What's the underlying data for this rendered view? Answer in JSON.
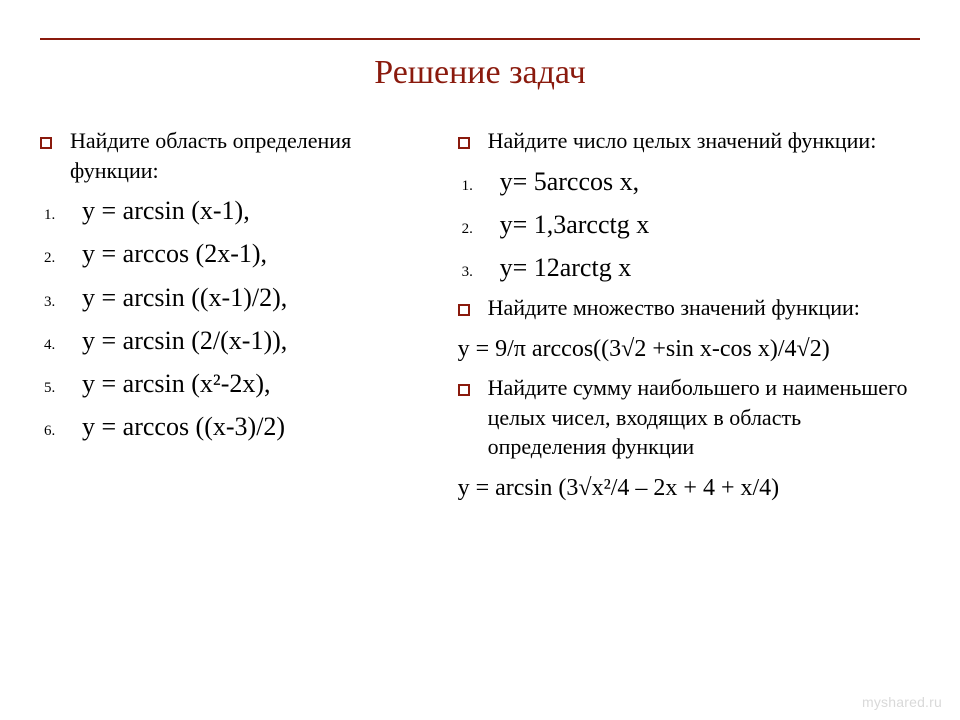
{
  "colors": {
    "accent": "#8a1a0d",
    "text": "#000000",
    "background": "#ffffff",
    "watermark": "#d9d9d9"
  },
  "title": "Решение задач",
  "left": {
    "prompt1": "Найдите область определения функции:",
    "items": [
      {
        "n": "1.",
        "t": "у = arcsin (x-1),"
      },
      {
        "n": "2.",
        "t": "у = arccos (2x-1),"
      },
      {
        "n": "3.",
        "t": "у = arcsin ((x-1)/2),"
      },
      {
        "n": "4.",
        "t": "у = arcsin (2/(x-1)),"
      },
      {
        "n": "5.",
        "t": "у = arcsin (x²-2x),"
      },
      {
        "n": "6.",
        "t": "у = arccos ((x-3)/2)"
      }
    ]
  },
  "right": {
    "prompt1": "Найдите число целых значений функции:",
    "items1": [
      {
        "n": "1.",
        "t": "у= 5arccos x,"
      },
      {
        "n": "2.",
        "t": "у= 1,3arcctg x"
      },
      {
        "n": "3.",
        "t": "у= 12arctg x"
      }
    ],
    "prompt2": "Найдите множество значений функции:",
    "formula1": "y = 9/π arccos((3√2 +sin x-cos x)/4√2)",
    "prompt3": "Найдите сумму наибольшего и наименьшего целых чисел, входящих в область определения функции",
    "formula2": "y = arcsin (3√x²/4 – 2x + 4 + x/4)"
  },
  "watermark": "myshared.ru"
}
